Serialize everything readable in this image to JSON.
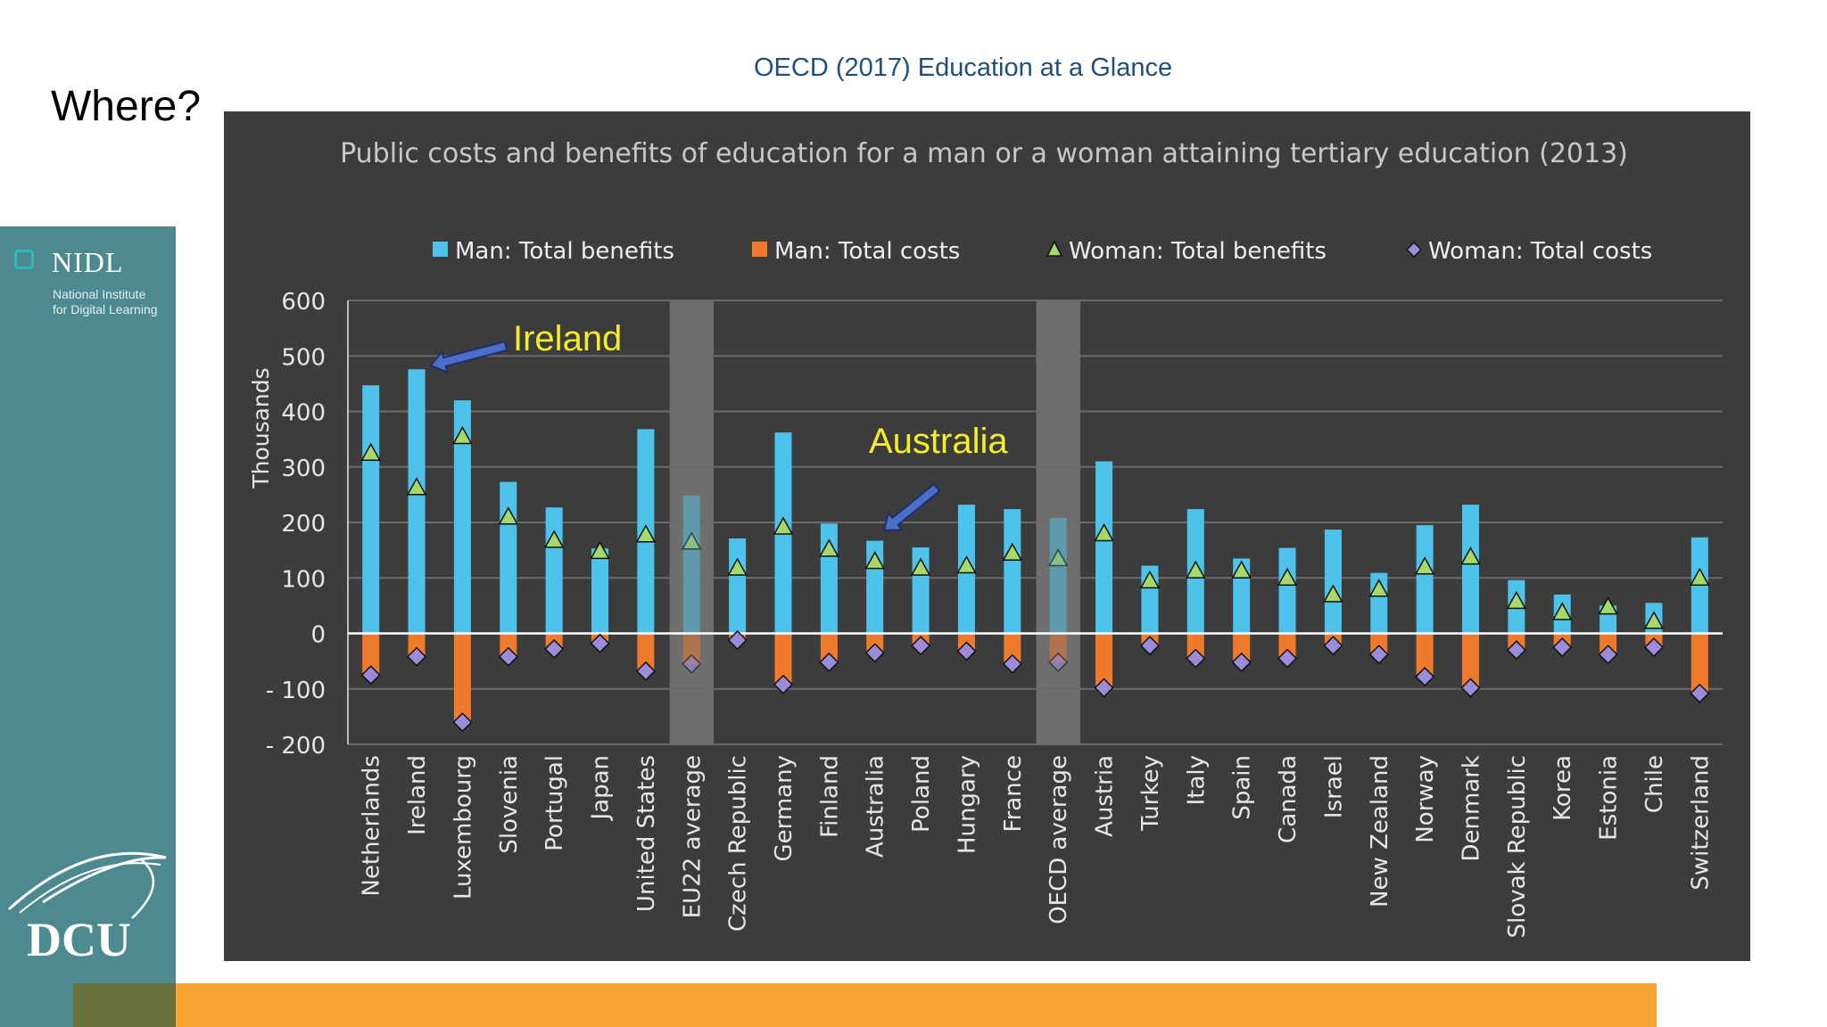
{
  "slide": {
    "title": "Where?",
    "source": "OECD (2017)  Education at a Glance"
  },
  "branding": {
    "nidl_name": "NIDL",
    "nidl_subtitle_line1": "National Institute",
    "nidl_subtitle_line2": "for Digital Learning",
    "dcu_name": "DCU"
  },
  "chart_data": {
    "type": "bar",
    "title": "Public costs and benefits of education for a man or a woman attaining tertiary education (2013)",
    "ylabel": "Thousands",
    "ylim": [
      -200,
      600
    ],
    "yticks": [
      600,
      500,
      400,
      300,
      200,
      100,
      0,
      -100,
      -200
    ],
    "ytick_labels": [
      "600",
      "500",
      "400",
      "300",
      "200",
      "100",
      "0",
      "- 100",
      "- 200"
    ],
    "grid": true,
    "legend_position": "top",
    "categories": [
      "Netherlands",
      "Ireland",
      "Luxembourg",
      "Slovenia",
      "Portugal",
      "Japan",
      "United States",
      "EU22 average",
      "Czech Republic",
      "Germany",
      "Finland",
      "Australia",
      "Poland",
      "Hungary",
      "France",
      "OECD average",
      "Austria",
      "Turkey",
      "Italy",
      "Spain",
      "Canada",
      "Israel",
      "New Zealand",
      "Norway",
      "Denmark",
      "Slovak Republic",
      "Korea",
      "Estonia",
      "Chile",
      "Switzerland"
    ],
    "highlighted_categories": [
      "EU22 average",
      "OECD average"
    ],
    "series": [
      {
        "name": "Man: Total benefits",
        "type": "bar",
        "color": "#4dc3eb",
        "values": [
          447,
          476,
          420,
          273,
          227,
          153,
          368,
          248,
          171,
          362,
          198,
          167,
          155,
          232,
          224,
          208,
          310,
          122,
          224,
          135,
          154,
          187,
          109,
          195,
          232,
          96,
          70,
          50,
          55,
          173
        ]
      },
      {
        "name": "Man: Total costs",
        "type": "bar",
        "color": "#f07a2b",
        "values": [
          -75,
          -42,
          -160,
          -42,
          -28,
          -18,
          -68,
          -55,
          -12,
          -92,
          -52,
          -35,
          -22,
          -32,
          -55,
          -52,
          -98,
          -22,
          -45,
          -52,
          -45,
          -22,
          -38,
          -78,
          -98,
          -30,
          -25,
          -38,
          -25,
          -108
        ]
      },
      {
        "name": "Woman: Total benefits",
        "type": "marker",
        "marker": "triangle",
        "color": "#a6d86a",
        "values": [
          325,
          263,
          355,
          210,
          168,
          148,
          178,
          165,
          118,
          192,
          152,
          130,
          118,
          122,
          145,
          135,
          180,
          95,
          113,
          113,
          100,
          70,
          80,
          120,
          138,
          58,
          38,
          48,
          22,
          100
        ]
      },
      {
        "name": "Woman: Total costs",
        "type": "marker",
        "marker": "diamond",
        "color": "#9b8bd9",
        "values": [
          -75,
          -42,
          -160,
          -42,
          -28,
          -18,
          -68,
          -55,
          -12,
          -92,
          -52,
          -35,
          -22,
          -32,
          -55,
          -52,
          -98,
          -22,
          -45,
          -52,
          -45,
          -22,
          -38,
          -78,
          -98,
          -30,
          -25,
          -38,
          -25,
          -108
        ]
      }
    ],
    "annotations": [
      {
        "text": "Ireland",
        "target": "Ireland",
        "color": "#f5ec2a"
      },
      {
        "text": "Australia",
        "target": "Australia",
        "color": "#f5ec2a"
      }
    ]
  }
}
